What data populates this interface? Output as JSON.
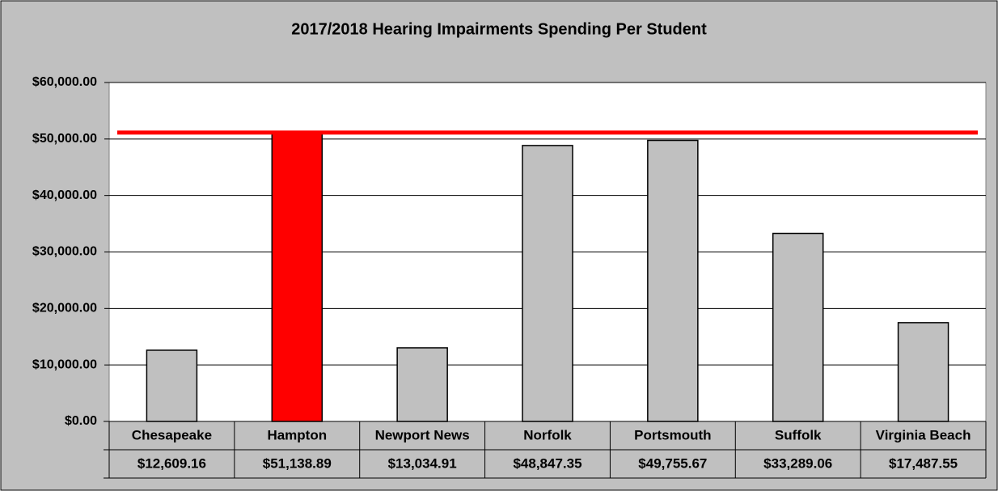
{
  "chart_data": {
    "type": "bar",
    "title": "2017/2018 Hearing Impairments Spending Per Student",
    "categories": [
      "Chesapeake",
      "Hampton",
      "Newport News",
      "Norfolk",
      "Portsmouth",
      "Suffolk",
      "Virginia Beach"
    ],
    "values": [
      12609.16,
      51138.89,
      13034.91,
      48847.35,
      49755.67,
      33289.06,
      17487.55
    ],
    "value_labels": [
      "$12,609.16",
      "$51,138.89",
      "$13,034.91",
      "$48,847.35",
      "$49,755.67",
      "$33,289.06",
      "$17,487.55"
    ],
    "colors": [
      "#c0c0c0",
      "#ff0000",
      "#c0c0c0",
      "#c0c0c0",
      "#c0c0c0",
      "#c0c0c0",
      "#c0c0c0"
    ],
    "highlight": "Hampton",
    "reference_line_color": "#ff0000",
    "ylim": [
      0,
      60000
    ],
    "yticks": [
      {
        "value": 0,
        "label": "$0.00"
      },
      {
        "value": 10000,
        "label": "$10,000.00"
      },
      {
        "value": 20000,
        "label": "$20,000.00"
      },
      {
        "value": 30000,
        "label": "$30,000.00"
      },
      {
        "value": 40000,
        "label": "$40,000.00"
      },
      {
        "value": 50000,
        "label": "$50,000.00"
      },
      {
        "value": 60000,
        "label": "$60,000.00"
      }
    ],
    "grid": true
  }
}
